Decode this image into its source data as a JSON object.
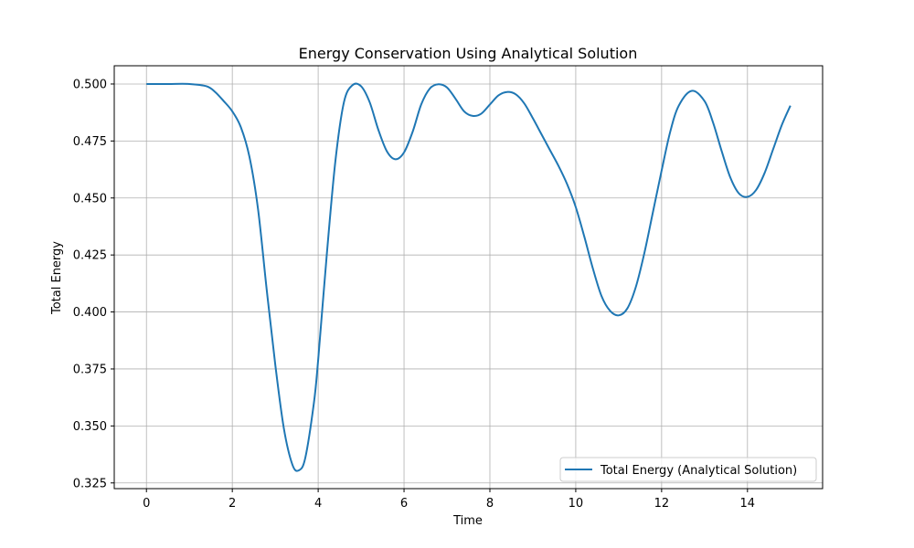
{
  "chart_data": {
    "type": "line",
    "title": "Energy Conservation Using Analytical Solution",
    "xlabel": "Time",
    "ylabel": "Total Energy",
    "xlim": [
      -0.75,
      15.75
    ],
    "ylim": [
      0.3225,
      0.508
    ],
    "xticks": [
      0,
      2,
      4,
      6,
      8,
      10,
      12,
      14
    ],
    "xtick_labels": [
      "0",
      "2",
      "4",
      "6",
      "8",
      "10",
      "12",
      "14"
    ],
    "yticks": [
      0.325,
      0.35,
      0.375,
      0.4,
      0.425,
      0.45,
      0.475,
      0.5
    ],
    "ytick_labels": [
      "0.325",
      "0.350",
      "0.375",
      "0.400",
      "0.425",
      "0.450",
      "0.475",
      "0.500"
    ],
    "grid": true,
    "legend_position": "lower-right",
    "series": [
      {
        "name": "Total Energy (Analytical Solution)",
        "color": "#1f77b4",
        "x": [
          0,
          0.5,
          1.0,
          1.4,
          1.6,
          1.8,
          2.0,
          2.2,
          2.4,
          2.6,
          2.8,
          3.0,
          3.2,
          3.4,
          3.55,
          3.7,
          3.9,
          4.0,
          4.2,
          4.4,
          4.6,
          4.8,
          5.0,
          5.2,
          5.4,
          5.6,
          5.8,
          6.0,
          6.2,
          6.4,
          6.6,
          6.8,
          7.0,
          7.2,
          7.4,
          7.6,
          7.8,
          8.0,
          8.2,
          8.4,
          8.6,
          8.8,
          9.0,
          9.2,
          9.4,
          9.6,
          9.8,
          10.0,
          10.2,
          10.4,
          10.6,
          10.8,
          11.0,
          11.2,
          11.4,
          11.6,
          11.8,
          12.0,
          12.2,
          12.4,
          12.7,
          13.0,
          13.2,
          13.4,
          13.6,
          13.8,
          14.0,
          14.2,
          14.4,
          14.6,
          14.8,
          15.0
        ],
        "y": [
          0.5,
          0.5,
          0.5,
          0.499,
          0.4965,
          0.4925,
          0.488,
          0.481,
          0.468,
          0.445,
          0.41,
          0.377,
          0.349,
          0.333,
          0.3305,
          0.336,
          0.36,
          0.379,
          0.425,
          0.466,
          0.492,
          0.4995,
          0.499,
          0.492,
          0.48,
          0.4705,
          0.467,
          0.47,
          0.479,
          0.491,
          0.498,
          0.4999,
          0.4985,
          0.4935,
          0.488,
          0.486,
          0.487,
          0.491,
          0.495,
          0.4965,
          0.4955,
          0.4915,
          0.485,
          0.478,
          0.471,
          0.464,
          0.456,
          0.446,
          0.433,
          0.419,
          0.407,
          0.4005,
          0.3985,
          0.4015,
          0.411,
          0.426,
          0.444,
          0.462,
          0.479,
          0.4905,
          0.497,
          0.4925,
          0.483,
          0.4705,
          0.459,
          0.452,
          0.4505,
          0.4535,
          0.461,
          0.4715,
          0.482,
          0.4905
        ]
      }
    ]
  }
}
